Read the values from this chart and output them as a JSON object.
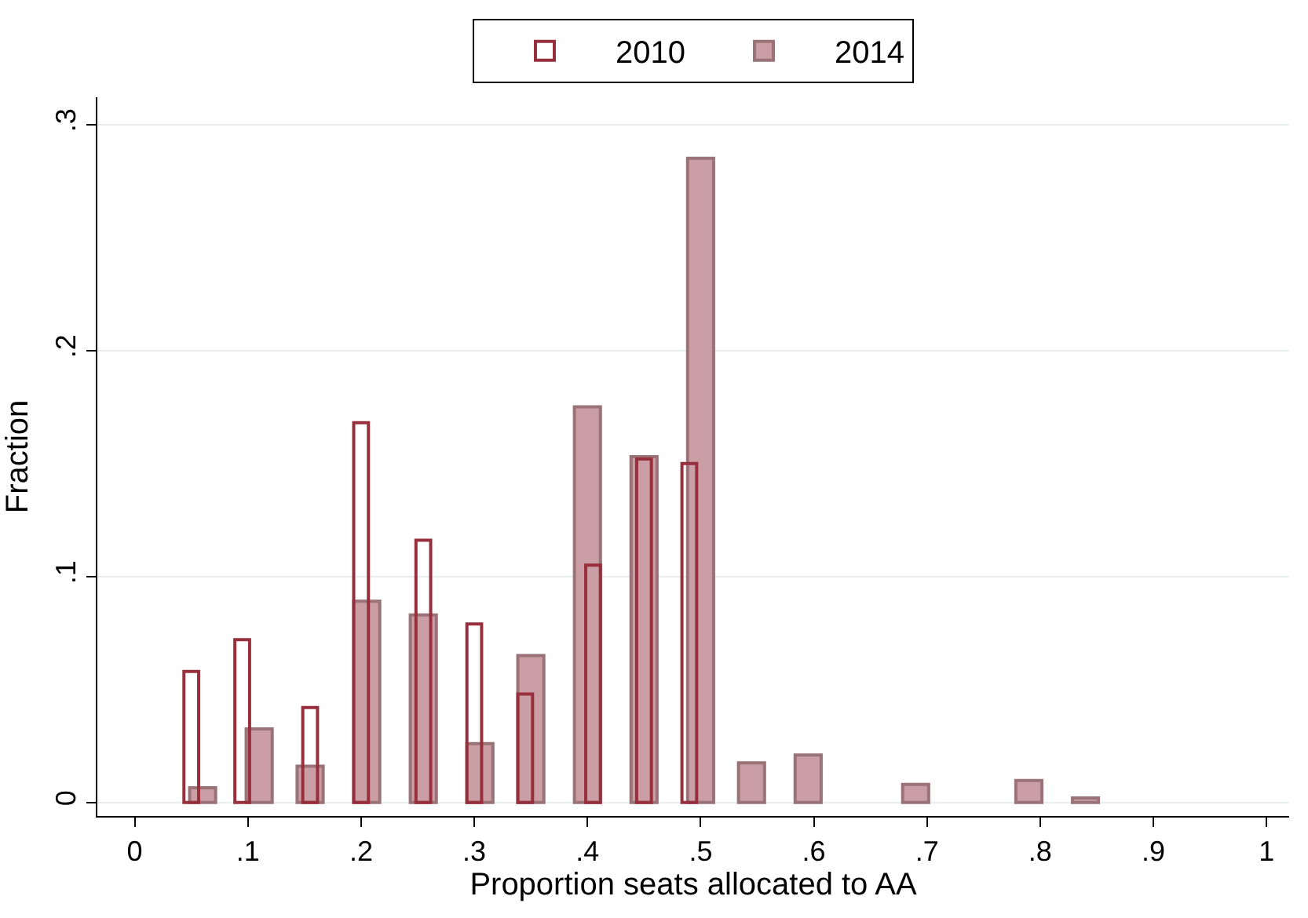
{
  "chart_data": {
    "type": "bar",
    "xlabel": "Proportion seats allocated to AA",
    "ylabel": "Fraction",
    "series": [
      {
        "name": "2010",
        "color": "#982f3c",
        "x": [
          0.05,
          0.095,
          0.155,
          0.2,
          0.255,
          0.3,
          0.345,
          0.405,
          0.45,
          0.49
        ],
        "values": [
          0.058,
          0.072,
          0.042,
          0.168,
          0.116,
          0.079,
          0.048,
          0.105,
          0.152,
          0.15
        ]
      },
      {
        "name": "2014",
        "color": "#c4949a",
        "x": [
          0.06,
          0.11,
          0.155,
          0.205,
          0.255,
          0.305,
          0.35,
          0.4,
          0.45,
          0.5,
          0.545,
          0.595,
          0.69,
          0.79,
          0.84
        ],
        "values": [
          0.0065,
          0.0325,
          0.016,
          0.089,
          0.083,
          0.026,
          0.065,
          0.175,
          0.153,
          0.285,
          0.0175,
          0.021,
          0.008,
          0.0097,
          0.002
        ]
      }
    ],
    "xlim": [
      -0.033,
      1.02
    ],
    "xticks": [
      {
        "value": 0,
        "label": "0"
      },
      {
        "value": 0.1,
        "label": ".1"
      },
      {
        "value": 0.2,
        "label": ".2"
      },
      {
        "value": 0.3,
        "label": ".3"
      },
      {
        "value": 0.4,
        "label": ".4"
      },
      {
        "value": 0.5,
        "label": ".5"
      },
      {
        "value": 0.6,
        "label": ".6"
      },
      {
        "value": 0.7,
        "label": ".7"
      },
      {
        "value": 0.8,
        "label": ".8"
      },
      {
        "value": 0.9,
        "label": ".9"
      },
      {
        "value": 1,
        "label": "1"
      }
    ],
    "ylim": [
      -0.006,
      0.312
    ],
    "yticks": [
      {
        "value": 0,
        "label": "0"
      },
      {
        "value": 0.1,
        "label": ".1"
      },
      {
        "value": 0.2,
        "label": ".2"
      },
      {
        "value": 0.3,
        "label": ".3"
      }
    ],
    "grid": "y",
    "legend": "top"
  }
}
